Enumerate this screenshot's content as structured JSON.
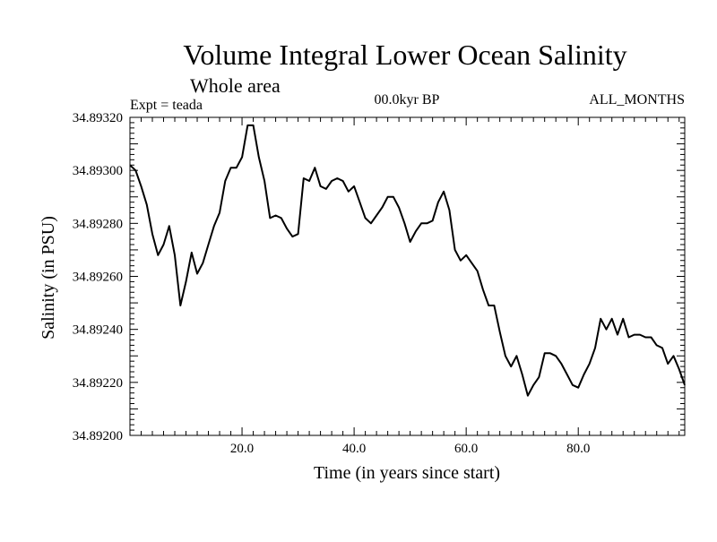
{
  "chart_data": {
    "type": "line",
    "title": "Volume Integral Lower Ocean Salinity",
    "subtitle": "Whole area",
    "experiment": "Expt = teada",
    "period": "00.0kyr BP",
    "months": "ALL_MONTHS",
    "xlabel": "Time (in years since start)",
    "ylabel": "Salinity (in PSU)",
    "xlim": [
      0,
      99
    ],
    "ylim": [
      34.892,
      34.8932
    ],
    "xticks": [
      20,
      40,
      60,
      80
    ],
    "xtick_labels": [
      "20.0",
      "40.0",
      "60.0",
      "80.0"
    ],
    "yticks": [
      34.892,
      34.8922,
      34.8924,
      34.8926,
      34.8928,
      34.893,
      34.8932
    ],
    "ytick_labels": [
      "34.89200",
      "34.89220",
      "34.89240",
      "34.89260",
      "34.89280",
      "34.89300",
      "34.89320"
    ],
    "grid": false,
    "series": [
      {
        "name": "Salinity",
        "x": [
          0,
          1,
          2,
          3,
          4,
          5,
          6,
          7,
          8,
          9,
          10,
          11,
          12,
          13,
          14,
          15,
          16,
          17,
          18,
          19,
          20,
          21,
          22,
          23,
          24,
          25,
          26,
          27,
          28,
          29,
          30,
          31,
          32,
          33,
          34,
          35,
          36,
          37,
          38,
          39,
          40,
          41,
          42,
          43,
          44,
          45,
          46,
          47,
          48,
          49,
          50,
          51,
          52,
          53,
          54,
          55,
          56,
          57,
          58,
          59,
          60,
          61,
          62,
          63,
          64,
          65,
          66,
          67,
          68,
          69,
          70,
          71,
          72,
          73,
          74,
          75,
          76,
          77,
          78,
          79,
          80,
          81,
          82,
          83,
          84,
          85,
          86,
          87,
          88,
          89,
          90,
          91,
          92,
          93,
          94,
          95,
          96,
          97,
          98,
          99
        ],
        "values": [
          34.89302,
          34.893,
          34.89294,
          34.89287,
          34.89276,
          34.89268,
          34.89272,
          34.89279,
          34.89268,
          34.89249,
          34.89258,
          34.89269,
          34.89261,
          34.89265,
          34.89272,
          34.89279,
          34.89284,
          34.89296,
          34.89301,
          34.89301,
          34.89305,
          34.89317,
          34.89317,
          34.89305,
          34.89296,
          34.89282,
          34.89283,
          34.89282,
          34.89278,
          34.89275,
          34.89276,
          34.89297,
          34.89296,
          34.89301,
          34.89294,
          34.89293,
          34.89296,
          34.89297,
          34.89296,
          34.89292,
          34.89294,
          34.89288,
          34.89282,
          34.8928,
          34.89283,
          34.89286,
          34.8929,
          34.8929,
          34.89286,
          34.8928,
          34.89273,
          34.89277,
          34.8928,
          34.8928,
          34.89281,
          34.89288,
          34.89292,
          34.89285,
          34.8927,
          34.89266,
          34.89268,
          34.89265,
          34.89262,
          34.89255,
          34.89249,
          34.89249,
          34.89239,
          34.8923,
          34.89226,
          34.8923,
          34.89223,
          34.89215,
          34.89219,
          34.89222,
          34.89231,
          34.89231,
          34.8923,
          34.89227,
          34.89223,
          34.89219,
          34.89218,
          34.89223,
          34.89227,
          34.89233,
          34.89244,
          34.8924,
          34.89244,
          34.89238,
          34.89244,
          34.89237,
          34.89238,
          34.89238,
          34.89237,
          34.89237,
          34.89234,
          34.89233,
          34.89227,
          34.8923,
          34.89225,
          34.89219
        ]
      }
    ]
  }
}
